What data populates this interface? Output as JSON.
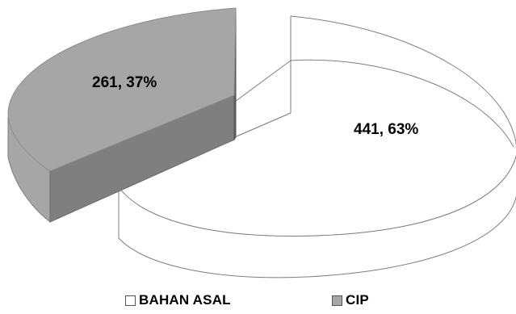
{
  "chart_data": {
    "type": "pie",
    "title": "",
    "series": [
      {
        "name": "",
        "categories": [
          "BAHAN ASAL",
          "CIP"
        ],
        "values": [
          441,
          261
        ],
        "percentages": [
          63,
          37
        ],
        "data_labels": [
          "441, 63%",
          "261, 37%"
        ]
      }
    ],
    "colors": {
      "BAHAN ASAL": "#ffffff",
      "CIP": "#a6a6a6",
      "CIP_side": "#7f7f7f",
      "CIP_inner_wall": "#636363",
      "outline": "#7f7f7f"
    },
    "style": "3d-exploded",
    "legend": {
      "position": "bottom",
      "items": [
        {
          "label": "BAHAN ASAL",
          "color": "#ffffff"
        },
        {
          "label": "CIP",
          "color": "#a6a6a6"
        }
      ]
    }
  }
}
